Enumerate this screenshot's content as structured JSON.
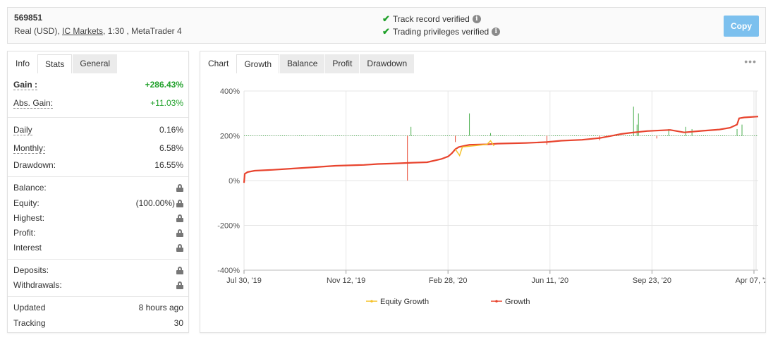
{
  "header": {
    "account_id": "569851",
    "account_type": "Real (USD),",
    "broker": "IC Markets",
    "account_details": ", 1:30 , MetaTrader 4",
    "verifications": [
      "Track record verified",
      "Trading privileges verified"
    ],
    "copy_label": "Copy"
  },
  "left_tabs": [
    "Info",
    "Stats",
    "General"
  ],
  "stats": {
    "gain_label": "Gain :",
    "gain_value": "+286.43%",
    "abs_gain_label": "Abs. Gain:",
    "abs_gain_value": "+11.03%",
    "daily_label": "Daily",
    "daily_value": "0.16%",
    "monthly_label": "Monthly:",
    "monthly_value": "6.58%",
    "drawdown_label": "Drawdown:",
    "drawdown_value": "16.55%",
    "balance_label": "Balance:",
    "equity_label": "Equity:",
    "equity_value": "(100.00%)",
    "highest_label": "Highest:",
    "profit_label": "Profit:",
    "interest_label": "Interest",
    "deposits_label": "Deposits:",
    "withdrawals_label": "Withdrawals:",
    "updated_label": "Updated",
    "updated_value": "8 hours ago",
    "tracking_label": "Tracking",
    "tracking_value": "30"
  },
  "chart_tabs": [
    "Chart",
    "Growth",
    "Balance",
    "Profit",
    "Drawdown"
  ],
  "more_icon": "ellipsis-icon",
  "colors": {
    "growth": "#e8442e",
    "equity": "#f5c22b",
    "bars": "#4caf50",
    "positive": "#21a12b",
    "copy_button": "#7cc0ee"
  },
  "chart_data": {
    "type": "line",
    "yticks": [
      "400%",
      "200%",
      "0%",
      "-200%",
      "-400%"
    ],
    "ylim": [
      -400,
      400
    ],
    "xticks": [
      "Jul 30, '19",
      "Nov 12, '19",
      "Feb 28, '20",
      "Jun 11, '20",
      "Sep 23, '20",
      "Apr 07, '21"
    ],
    "series": [
      {
        "name": "Growth",
        "points": [
          [
            0,
            -10
          ],
          [
            1,
            30
          ],
          [
            5,
            38
          ],
          [
            15,
            44
          ],
          [
            40,
            48
          ],
          [
            70,
            54
          ],
          [
            100,
            60
          ],
          [
            130,
            66
          ],
          [
            170,
            70
          ],
          [
            190,
            74
          ],
          [
            210,
            76
          ],
          [
            240,
            80
          ],
          [
            260,
            82
          ],
          [
            280,
            96
          ],
          [
            290,
            108
          ],
          [
            295,
            122
          ],
          [
            300,
            140
          ],
          [
            305,
            150
          ],
          [
            320,
            160
          ],
          [
            345,
            162
          ],
          [
            360,
            165
          ],
          [
            400,
            168
          ],
          [
            430,
            172
          ],
          [
            450,
            178
          ],
          [
            480,
            182
          ],
          [
            505,
            190
          ],
          [
            525,
            202
          ],
          [
            535,
            208
          ],
          [
            550,
            214
          ],
          [
            572,
            221
          ],
          [
            605,
            226
          ],
          [
            625,
            215
          ],
          [
            650,
            222
          ],
          [
            675,
            228
          ],
          [
            690,
            236
          ],
          [
            700,
            250
          ],
          [
            703,
            278
          ],
          [
            710,
            282
          ],
          [
            730,
            286
          ]
        ]
      },
      {
        "name": "Equity Growth",
        "points": [
          [
            300,
            140
          ],
          [
            306,
            112
          ],
          [
            310,
            150
          ],
          [
            345,
            162
          ],
          [
            350,
            178
          ],
          [
            355,
            155
          ]
        ]
      }
    ],
    "bars_baseline": 200,
    "bars": [
      [
        237,
        240
      ],
      [
        320,
        300
      ],
      [
        350,
        212
      ],
      [
        553,
        330
      ],
      [
        558,
        250
      ],
      [
        560,
        300
      ],
      [
        603,
        230
      ],
      [
        627,
        240
      ],
      [
        636,
        230
      ],
      [
        700,
        230
      ],
      [
        707,
        250
      ]
    ],
    "legend": [
      "Equity Growth",
      "Growth"
    ]
  }
}
